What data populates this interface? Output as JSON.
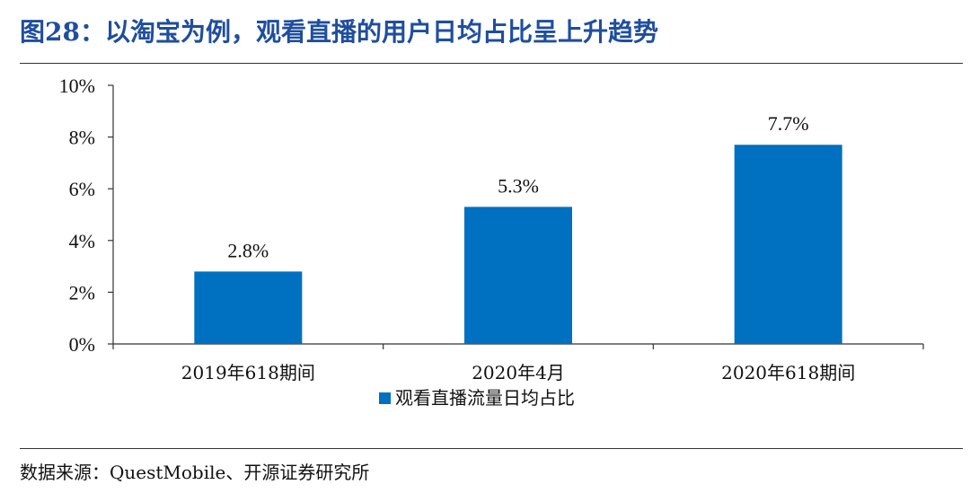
{
  "header": {
    "title": "图28：以淘宝为例，观看直播的用户日均占比呈上升趋势"
  },
  "footer": {
    "source": "数据来源：QuestMobile、开源证券研究所"
  },
  "colors": {
    "bar": "#0070c0",
    "title": "#1f4e9e"
  },
  "chart_data": {
    "type": "bar",
    "categories": [
      "2019年618期间",
      "2020年4月",
      "2020年618期间"
    ],
    "series": [
      {
        "name": "观看直播流量日均占比",
        "values": [
          2.8,
          5.3,
          7.7
        ]
      }
    ],
    "data_labels": [
      "2.8%",
      "5.3%",
      "7.7%"
    ],
    "y_ticks": [
      0,
      2,
      4,
      6,
      8,
      10
    ],
    "y_tick_labels": [
      "0%",
      "2%",
      "4%",
      "6%",
      "8%",
      "10%"
    ],
    "ylim": [
      0,
      10
    ],
    "grid": false,
    "legend_position": "bottom-center"
  }
}
